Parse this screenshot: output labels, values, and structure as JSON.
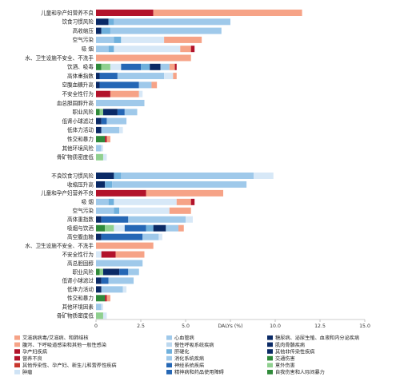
{
  "chart_data": [
    {
      "type": "bar",
      "stacked": true,
      "orientation": "horizontal",
      "categories": [
        "儿童和孕产妇营养不良",
        "饮食习惯风险",
        "高收缩压",
        "空气污染",
        "吸  烟",
        "水、卫生设施不安全、不洗手",
        "饮酒、吸毒",
        "高体重指数",
        "空腹血糖升高",
        "不安全性行为",
        "血总胆固醇升高",
        "职业风险",
        "低肾小球滤过",
        "低体力活动",
        "性交和暴力",
        "其他环境风险",
        "骨矿物质密度低"
      ],
      "series_colors": [
        "#b2132b",
        "#f6a387",
        "#0a2a66",
        "#6fb0dc",
        "#9fc9ea",
        "#2567b5",
        "#2f8a3a",
        "#8fd08f"
      ],
      "bars": [
        [
          {
            "c": "#b2132b",
            "v": 3.2
          },
          {
            "c": "#f6a387",
            "v": 8.3
          }
        ],
        [
          {
            "c": "#0a2a66",
            "v": 0.7
          },
          {
            "c": "#6fb0dc",
            "v": 0.3
          },
          {
            "c": "#9fc9ea",
            "v": 6.5
          }
        ],
        [
          {
            "c": "#0a2a66",
            "v": 0.3
          },
          {
            "c": "#6fb0dc",
            "v": 0.5
          },
          {
            "c": "#9fc9ea",
            "v": 6.2
          }
        ],
        [
          {
            "c": "#9fc9ea",
            "v": 1.0
          },
          {
            "c": "#6fb0dc",
            "v": 0.4
          },
          {
            "c": "#d7e8f7",
            "v": 2.4
          },
          {
            "c": "#f6a387",
            "v": 2.1
          }
        ],
        [
          {
            "c": "#9fc9ea",
            "v": 0.7
          },
          {
            "c": "#6fb0dc",
            "v": 0.3
          },
          {
            "c": "#d7e8f7",
            "v": 3.7
          },
          {
            "c": "#f6a387",
            "v": 0.6
          },
          {
            "c": "#b2132b",
            "v": 0.2
          }
        ],
        [
          {
            "c": "#f6a387",
            "v": 5.3
          }
        ],
        [
          {
            "c": "#2f8a3a",
            "v": 0.3
          },
          {
            "c": "#8fd08f",
            "v": 0.5
          },
          {
            "c": "#d7e8f7",
            "v": 0.6
          },
          {
            "c": "#2567b5",
            "v": 1.1
          },
          {
            "c": "#6fb0dc",
            "v": 0.5
          },
          {
            "c": "#0a2a66",
            "v": 0.6
          },
          {
            "c": "#9fc9ea",
            "v": 0.5
          },
          {
            "c": "#f6a387",
            "v": 0.3
          },
          {
            "c": "#b2132b",
            "v": 0.1
          }
        ],
        [
          {
            "c": "#0a2a66",
            "v": 0.2
          },
          {
            "c": "#2567b5",
            "v": 1.0
          },
          {
            "c": "#9fc9ea",
            "v": 2.6
          },
          {
            "c": "#d7e8f7",
            "v": 0.5
          },
          {
            "c": "#f6a387",
            "v": 0.2
          }
        ],
        [
          {
            "c": "#0a2a66",
            "v": 0.2
          },
          {
            "c": "#2567b5",
            "v": 2.2
          },
          {
            "c": "#9fc9ea",
            "v": 0.7
          },
          {
            "c": "#f6a387",
            "v": 0.3
          }
        ],
        [
          {
            "c": "#b2132b",
            "v": 0.8
          },
          {
            "c": "#f6a387",
            "v": 1.6
          },
          {
            "c": "#d7e8f7",
            "v": 0.2
          }
        ],
        [
          {
            "c": "#9fc9ea",
            "v": 2.7
          }
        ],
        [
          {
            "c": "#2f8a3a",
            "v": 0.2
          },
          {
            "c": "#8fd08f",
            "v": 0.2
          },
          {
            "c": "#0a2a66",
            "v": 0.8
          },
          {
            "c": "#2567b5",
            "v": 0.4
          },
          {
            "c": "#9fc9ea",
            "v": 0.7
          }
        ],
        [
          {
            "c": "#0a2a66",
            "v": 0.3
          },
          {
            "c": "#2567b5",
            "v": 0.3
          },
          {
            "c": "#9fc9ea",
            "v": 1.1
          }
        ],
        [
          {
            "c": "#0a2a66",
            "v": 0.3
          },
          {
            "c": "#9fc9ea",
            "v": 1.0
          },
          {
            "c": "#d7e8f7",
            "v": 0.2
          }
        ],
        [
          {
            "c": "#2f8a3a",
            "v": 0.5
          },
          {
            "c": "#b2132b",
            "v": 0.1
          },
          {
            "c": "#f6a387",
            "v": 0.2
          }
        ],
        [
          {
            "c": "#9fc9ea",
            "v": 0.3
          },
          {
            "c": "#d7e8f7",
            "v": 0.1
          }
        ],
        [
          {
            "c": "#8fd08f",
            "v": 0.4
          },
          {
            "c": "#d7e8f7",
            "v": 0.2
          }
        ]
      ]
    },
    {
      "type": "bar",
      "stacked": true,
      "orientation": "horizontal",
      "categories": [
        "不良饮食习惯风险",
        "收缩压升高",
        "儿童和孕产妇营养不良",
        "吸  烟",
        "空气污染",
        "高体重指数",
        "吸烟与饮酒",
        "高空腹血糖",
        "水、卫生设施不安全、不洗手",
        "不安全性行为",
        "高总胆固醇",
        "职业风险",
        "低肾小球滤过",
        "低体力活动",
        "性交和暴力",
        "其他环境因素",
        "骨矿物质密度低"
      ],
      "bars": [
        [
          {
            "c": "#0a2a66",
            "v": 1.0
          },
          {
            "c": "#6fb0dc",
            "v": 0.4
          },
          {
            "c": "#9fc9ea",
            "v": 7.4
          },
          {
            "c": "#d7e8f7",
            "v": 1.1
          }
        ],
        [
          {
            "c": "#0a2a66",
            "v": 0.5
          },
          {
            "c": "#6fb0dc",
            "v": 0.4
          },
          {
            "c": "#9fc9ea",
            "v": 7.5
          }
        ],
        [
          {
            "c": "#b2132b",
            "v": 2.8
          },
          {
            "c": "#f6a387",
            "v": 4.3
          }
        ],
        [
          {
            "c": "#9fc9ea",
            "v": 0.7
          },
          {
            "c": "#6fb0dc",
            "v": 0.3
          },
          {
            "c": "#d7e8f7",
            "v": 3.5
          },
          {
            "c": "#f6a387",
            "v": 0.8
          },
          {
            "c": "#b2132b",
            "v": 0.2
          }
        ],
        [
          {
            "c": "#9fc9ea",
            "v": 1.0
          },
          {
            "c": "#6fb0dc",
            "v": 0.3
          },
          {
            "c": "#d7e8f7",
            "v": 2.8
          },
          {
            "c": "#f6a387",
            "v": 1.2
          }
        ],
        [
          {
            "c": "#0a2a66",
            "v": 0.3
          },
          {
            "c": "#2567b5",
            "v": 1.5
          },
          {
            "c": "#9fc9ea",
            "v": 3.2
          },
          {
            "c": "#d7e8f7",
            "v": 0.4
          }
        ],
        [
          {
            "c": "#2f8a3a",
            "v": 0.5
          },
          {
            "c": "#8fd08f",
            "v": 0.5
          },
          {
            "c": "#d7e8f7",
            "v": 0.6
          },
          {
            "c": "#2567b5",
            "v": 1.2
          },
          {
            "c": "#6fb0dc",
            "v": 0.4
          },
          {
            "c": "#0a2a66",
            "v": 0.7
          },
          {
            "c": "#9fc9ea",
            "v": 0.7
          },
          {
            "c": "#f6a387",
            "v": 0.3
          }
        ],
        [
          {
            "c": "#0a2a66",
            "v": 0.3
          },
          {
            "c": "#2567b5",
            "v": 2.3
          },
          {
            "c": "#9fc9ea",
            "v": 0.9
          },
          {
            "c": "#d7e8f7",
            "v": 0.2
          }
        ],
        [
          {
            "c": "#f6a387",
            "v": 3.2
          }
        ],
        [
          {
            "c": "#d7e8f7",
            "v": 0.3
          },
          {
            "c": "#b2132b",
            "v": 0.8
          },
          {
            "c": "#f6a387",
            "v": 1.6
          }
        ],
        [
          {
            "c": "#9fc9ea",
            "v": 2.6
          }
        ],
        [
          {
            "c": "#2f8a3a",
            "v": 0.2
          },
          {
            "c": "#8fd08f",
            "v": 0.2
          },
          {
            "c": "#0a2a66",
            "v": 0.9
          },
          {
            "c": "#2567b5",
            "v": 0.5
          },
          {
            "c": "#9fc9ea",
            "v": 0.6
          }
        ],
        [
          {
            "c": "#0a2a66",
            "v": 0.3
          },
          {
            "c": "#2567b5",
            "v": 0.4
          },
          {
            "c": "#9fc9ea",
            "v": 1.4
          }
        ],
        [
          {
            "c": "#0a2a66",
            "v": 0.3
          },
          {
            "c": "#9fc9ea",
            "v": 1.2
          },
          {
            "c": "#d7e8f7",
            "v": 0.2
          }
        ],
        [
          {
            "c": "#2f8a3a",
            "v": 0.5
          },
          {
            "c": "#b2132b",
            "v": 0.1
          },
          {
            "c": "#f6a387",
            "v": 0.2
          }
        ],
        [
          {
            "c": "#9fc9ea",
            "v": 0.3
          },
          {
            "c": "#d7e8f7",
            "v": 0.1
          }
        ],
        [
          {
            "c": "#8fd08f",
            "v": 0.4
          },
          {
            "c": "#d7e8f7",
            "v": 0.2
          }
        ]
      ],
      "x_ticks": [
        "0",
        "2.5",
        "5.0",
        "DALYs (%)",
        "10.0",
        "12.5",
        "15.0"
      ],
      "xlim": [
        0,
        15
      ]
    }
  ],
  "legend": [
    {
      "label": "艾滋病病毒/艾滋病、和肺结核",
      "color": "#f6a387"
    },
    {
      "label": "腹泻、下呼吸道感染和其他一般性感染",
      "color": "#f6a387"
    },
    {
      "label": "孕产妇疾病",
      "color": "#b2132b"
    },
    {
      "label": "营养不良",
      "color": "#b2132b"
    },
    {
      "label": "其他传染性、孕产妇、新生儿和营养性疾病",
      "color": "#c8372d"
    },
    {
      "label": "肿瘤",
      "color": "#cfe3f5"
    },
    {
      "label": "心血管病",
      "color": "#9fc9ea"
    },
    {
      "label": "慢性呼吸系统疾病",
      "color": "#bcd8ef"
    },
    {
      "label": "肝硬化",
      "color": "#6fb0dc"
    },
    {
      "label": "消化系统疾病",
      "color": "#9fc9ea"
    },
    {
      "label": "神经系统疾病",
      "color": "#2567b5"
    },
    {
      "label": "精神病和药品使用障碍",
      "color": "#2567b5"
    },
    {
      "label": "糖尿病、泌尿生殖、血液和内分泌疾病",
      "color": "#0a2a66"
    },
    {
      "label": "肌肉骨骼疾病",
      "color": "#0a2a66"
    },
    {
      "label": "其他非传染性疾病",
      "color": "#0a2a66"
    },
    {
      "label": "交通伤害",
      "color": "#2f8a3a"
    },
    {
      "label": "意外伤害",
      "color": "#8fd08f"
    },
    {
      "label": "自我伤害和人际间暴力",
      "color": "#2f8a3a"
    }
  ]
}
